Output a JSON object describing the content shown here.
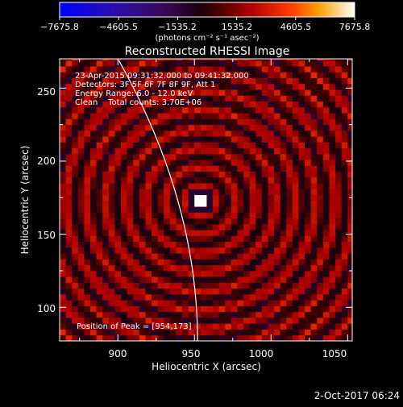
{
  "chart_data": {
    "type": "heatmap",
    "title": "Reconstructed RHESSI Image",
    "xlabel": "Heliocentric X (arcsec)",
    "ylabel": "Heliocentric Y (arcsec)",
    "xlim": [
      862,
      1053
    ],
    "ylim": [
      77,
      270
    ],
    "xticks": [
      900,
      950,
      1000,
      1050
    ],
    "yticks": [
      100,
      150,
      200,
      250
    ],
    "colorbar": {
      "min": -7675.8,
      "max": 7675.8,
      "tick_labels": [
        "−7675.8",
        "−4605.5",
        "−1535.2",
        "1535.2",
        "4605.5",
        "7675.8"
      ],
      "unit_label": "(photons cm⁻² s⁻¹ asec⁻²)"
    },
    "annotations": [
      "23-Apr-2015 09:31:32.000 to 09:41:32.000",
      "Detectors: 3F 5F 6F 7F 8F 9F, Att 1",
      "Energy Range: 6.0 - 12.0 keV",
      "Clean    Total counts: 3.70E+06"
    ],
    "peak_label": "Position of Peak = [954,173]",
    "peak_position": [
      954,
      173
    ],
    "footer_date": "2-Oct-2017 06:24"
  }
}
